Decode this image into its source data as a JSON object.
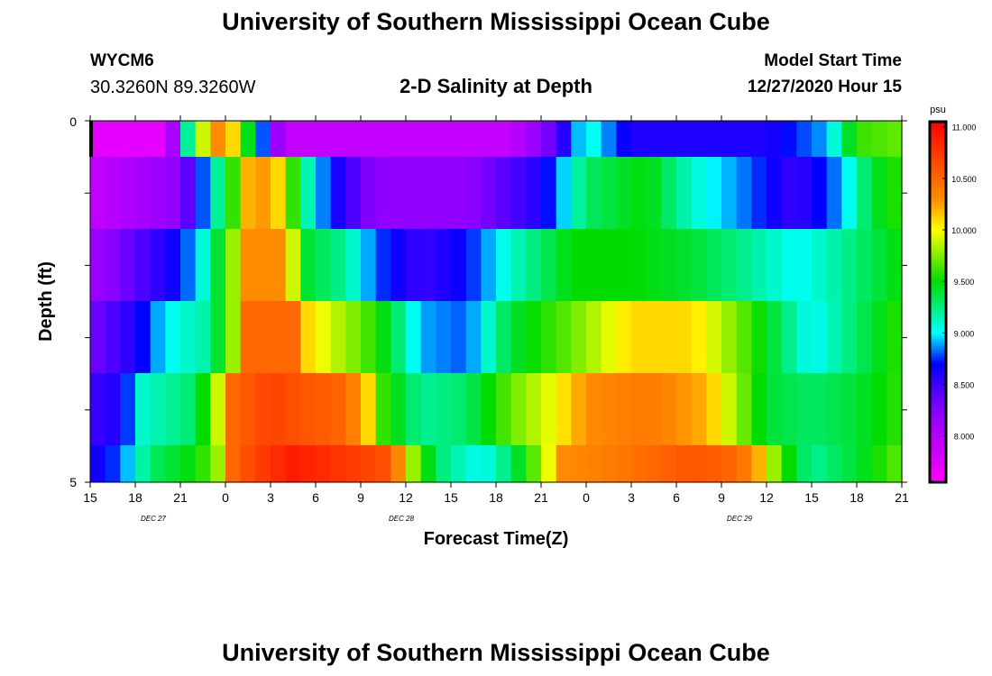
{
  "header": {
    "title": "University of Southern Mississippi Ocean Cube",
    "station": "WYCM6",
    "coords": "30.3260N 89.3260W",
    "subtitle": "2-D Salinity at Depth",
    "model_start_label": "Model Start Time",
    "model_start_value": "12/27/2020 Hour 15"
  },
  "footer": {
    "title": "University of Southern Mississippi Ocean Cube"
  },
  "chart_data": {
    "type": "heatmap",
    "title": "2-D Salinity at Depth",
    "xlabel": "Forecast Time(Z)",
    "ylabel": "Depth (ft)",
    "x_ticks": [
      "15",
      "18",
      "21",
      "0",
      "3",
      "6",
      "9",
      "12",
      "15",
      "18",
      "21",
      "0",
      "3",
      "6",
      "9",
      "12",
      "15",
      "18",
      "21"
    ],
    "y_ticks": [
      "0",
      "5"
    ],
    "ylim": [
      0,
      5
    ],
    "date_labels": [
      {
        "label": "DEC  27",
        "x_index": 1.4
      },
      {
        "label": "DEC  28",
        "x_index": 6.9
      },
      {
        "label": "DEC  29",
        "x_index": 14.4
      }
    ],
    "colorbar": {
      "unit": "psu",
      "min": 7.55,
      "max": 11.05,
      "tick_labels": [
        "11.000",
        "10.500",
        "10.000",
        "9.500",
        "9.000",
        "8.500",
        "8.000"
      ],
      "ticks": [
        11.0,
        10.5,
        10.0,
        9.5,
        9.0,
        8.5,
        8.0
      ]
    },
    "rows": [
      {
        "depth": "0-0.5",
        "knots": [
          [
            0,
            7.7
          ],
          [
            5,
            7.7
          ],
          [
            6,
            8.4
          ],
          [
            6.5,
            9.2
          ],
          [
            7.5,
            9.9
          ],
          [
            8.5,
            10.3
          ],
          [
            9.5,
            10.1
          ],
          [
            10,
            9.7
          ],
          [
            11,
            9.2
          ],
          [
            12,
            8.4
          ],
          [
            13,
            7.9
          ],
          [
            28,
            7.9
          ],
          [
            31,
            8.4
          ],
          [
            33,
            9.1
          ],
          [
            36,
            8.6
          ],
          [
            40,
            8.6
          ],
          [
            45,
            8.6
          ],
          [
            49,
            8.9
          ],
          [
            51,
            9.6
          ],
          [
            54,
            9.7
          ]
        ]
      },
      {
        "depth": "0.5-1.5",
        "knots": [
          [
            0,
            7.9
          ],
          [
            6,
            8.2
          ],
          [
            8,
            9.0
          ],
          [
            9.5,
            9.6
          ],
          [
            10.5,
            10.2
          ],
          [
            12,
            10.3
          ],
          [
            13,
            9.9
          ],
          [
            14,
            9.3
          ],
          [
            16,
            8.7
          ],
          [
            19,
            8.2
          ],
          [
            25,
            8.2
          ],
          [
            30,
            8.6
          ],
          [
            33,
            9.3
          ],
          [
            37,
            9.5
          ],
          [
            40,
            9.1
          ],
          [
            44,
            8.8
          ],
          [
            47,
            8.5
          ],
          [
            50,
            8.9
          ],
          [
            52,
            9.4
          ],
          [
            54,
            9.6
          ]
        ]
      },
      {
        "depth": "1.5-2.5",
        "knots": [
          [
            0,
            8.1
          ],
          [
            4,
            8.5
          ],
          [
            6,
            8.7
          ],
          [
            8,
            9.2
          ],
          [
            9.5,
            9.8
          ],
          [
            10.5,
            10.3
          ],
          [
            12.5,
            10.3
          ],
          [
            13.5,
            9.9
          ],
          [
            14.5,
            9.4
          ],
          [
            17,
            9.2
          ],
          [
            19,
            8.8
          ],
          [
            22,
            8.5
          ],
          [
            25,
            8.7
          ],
          [
            28,
            9.1
          ],
          [
            32,
            9.5
          ],
          [
            36,
            9.5
          ],
          [
            40,
            9.4
          ],
          [
            44,
            9.2
          ],
          [
            47,
            9.0
          ],
          [
            50,
            9.2
          ],
          [
            54,
            9.5
          ]
        ]
      },
      {
        "depth": "2.5-3.5",
        "knots": [
          [
            0,
            8.3
          ],
          [
            3,
            8.6
          ],
          [
            5,
            9.0
          ],
          [
            8,
            9.2
          ],
          [
            9.5,
            9.8
          ],
          [
            10.5,
            10.5
          ],
          [
            13.5,
            10.5
          ],
          [
            14.5,
            10.1
          ],
          [
            16,
            9.9
          ],
          [
            18,
            9.7
          ],
          [
            20,
            9.4
          ],
          [
            22,
            8.9
          ],
          [
            25,
            8.8
          ],
          [
            28,
            9.4
          ],
          [
            32,
            9.7
          ],
          [
            36,
            10.1
          ],
          [
            40,
            10.1
          ],
          [
            44,
            9.6
          ],
          [
            48,
            9.0
          ],
          [
            51,
            9.3
          ],
          [
            54,
            9.6
          ]
        ]
      },
      {
        "depth": "3.5-4.5",
        "knots": [
          [
            0,
            8.5
          ],
          [
            2,
            8.6
          ],
          [
            3.5,
            9.1
          ],
          [
            7,
            9.3
          ],
          [
            8.5,
            9.9
          ],
          [
            9.5,
            10.5
          ],
          [
            12,
            10.7
          ],
          [
            14,
            10.6
          ],
          [
            17,
            10.5
          ],
          [
            18.5,
            10.1
          ],
          [
            19.5,
            9.6
          ],
          [
            22,
            9.2
          ],
          [
            25,
            9.3
          ],
          [
            28,
            9.7
          ],
          [
            31,
            10.0
          ],
          [
            33,
            10.3
          ],
          [
            37,
            10.4
          ],
          [
            41,
            10.2
          ],
          [
            43,
            9.8
          ],
          [
            45,
            9.4
          ],
          [
            48,
            9.3
          ],
          [
            51,
            9.4
          ],
          [
            54,
            9.6
          ]
        ]
      },
      {
        "depth": "4.5-5",
        "knots": [
          [
            0,
            8.6
          ],
          [
            2,
            8.8
          ],
          [
            4,
            9.3
          ],
          [
            7,
            9.5
          ],
          [
            9,
            9.9
          ],
          [
            9.5,
            10.5
          ],
          [
            11,
            10.7
          ],
          [
            13.5,
            10.9
          ],
          [
            16,
            10.8
          ],
          [
            20,
            10.6
          ],
          [
            21.5,
            9.8
          ],
          [
            23,
            9.3
          ],
          [
            26,
            9.0
          ],
          [
            28,
            9.3
          ],
          [
            30,
            9.8
          ],
          [
            31.5,
            10.3
          ],
          [
            35,
            10.4
          ],
          [
            40,
            10.6
          ],
          [
            43,
            10.5
          ],
          [
            44.5,
            10.2
          ],
          [
            46,
            9.6
          ],
          [
            48,
            9.2
          ],
          [
            51,
            9.4
          ],
          [
            54,
            9.7
          ]
        ]
      }
    ]
  }
}
